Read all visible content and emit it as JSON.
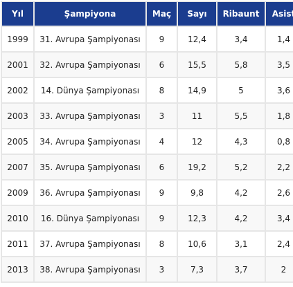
{
  "table": {
    "headers": [
      "Yıl",
      "Şampiyona",
      "Maç",
      "Sayı",
      "Ribaunt",
      "Asist"
    ],
    "rows": [
      [
        "1999",
        "31. Avrupa Şampiyonası",
        "9",
        "12,4",
        "3,4",
        "1,4"
      ],
      [
        "2001",
        "32. Avrupa Şampiyonası",
        "6",
        "15,5",
        "5,8",
        "3,5"
      ],
      [
        "2002",
        "14. Dünya Şampiyonası",
        "8",
        "14,9",
        "5",
        "3,6"
      ],
      [
        "2003",
        "33. Avrupa Şampiyonası",
        "3",
        "11",
        "5,5",
        "1,8"
      ],
      [
        "2005",
        "34. Avrupa Şampiyonası",
        "4",
        "12",
        "4,3",
        "0,8"
      ],
      [
        "2007",
        "35. Avrupa Şampiyonası",
        "6",
        "19,2",
        "5,2",
        "2,2"
      ],
      [
        "2009",
        "36. Avrupa Şampiyonası",
        "9",
        "9,8",
        "4,2",
        "2,6"
      ],
      [
        "2010",
        "16. Dünya Şampiyonası",
        "9",
        "12,3",
        "4,2",
        "3,4"
      ],
      [
        "2011",
        "37. Avrupa Şampiyonası",
        "8",
        "10,6",
        "3,1",
        "2,4"
      ],
      [
        "2013",
        "38. Avrupa Şampiyonası",
        "3",
        "7,3",
        "3,7",
        "2"
      ]
    ]
  },
  "colors": {
    "header_bg": "#1b3d8f",
    "header_text": "#ffffff",
    "grid": "#e6e6e6"
  }
}
